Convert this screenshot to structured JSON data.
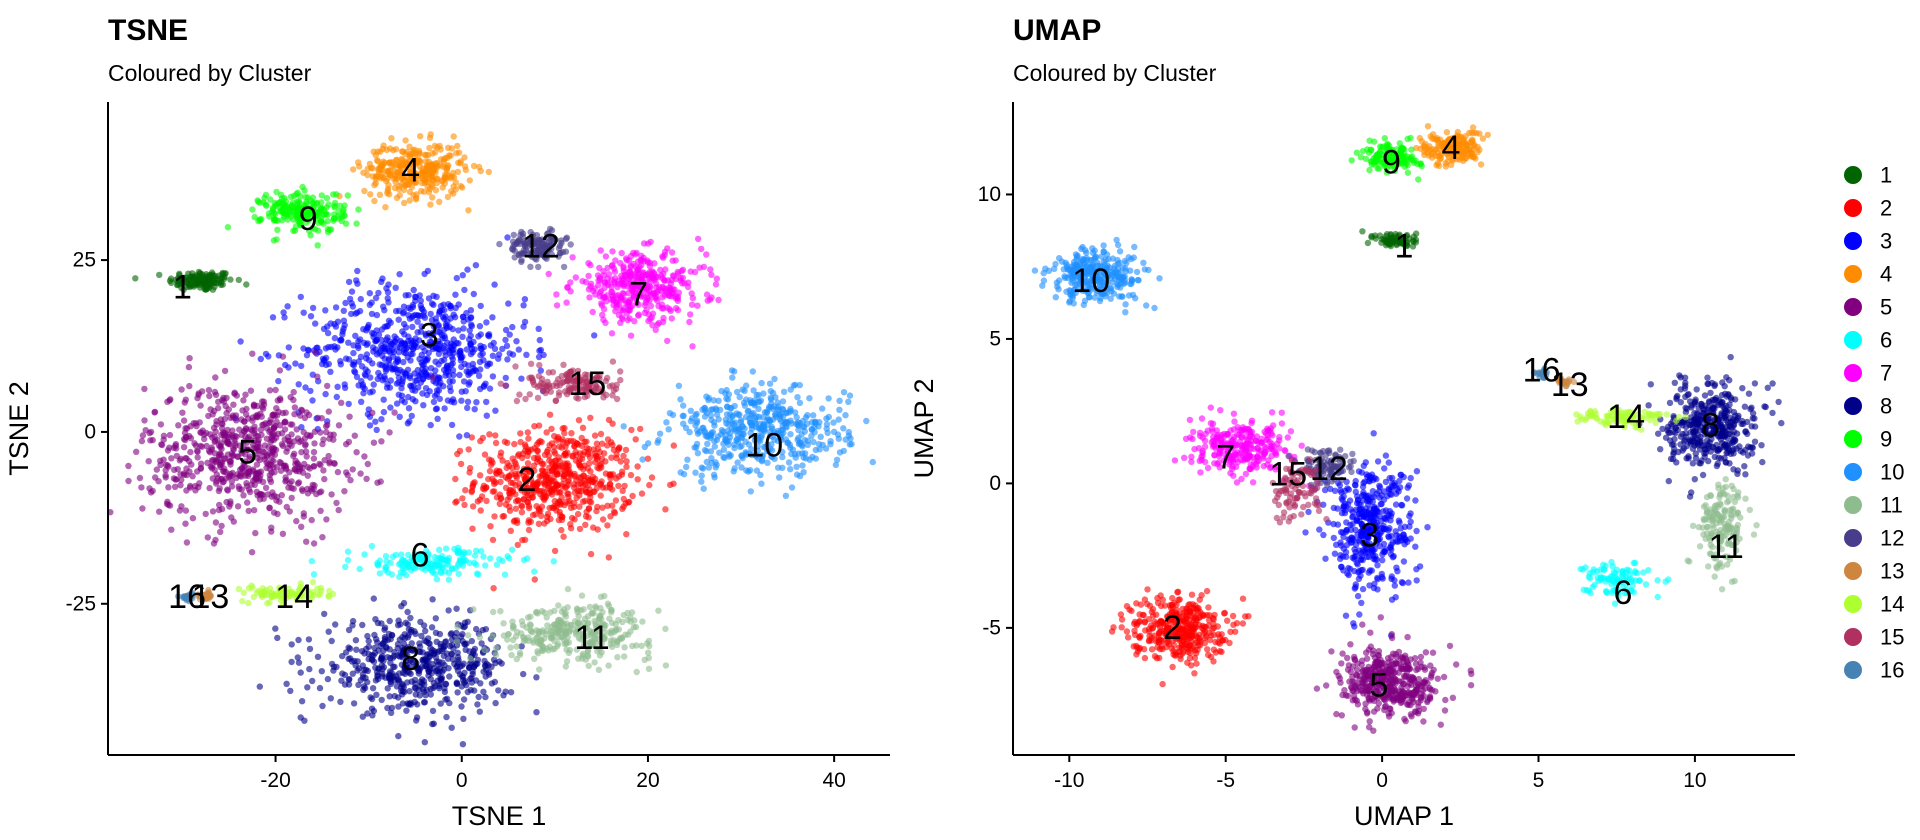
{
  "figure": {
    "legend": {
      "placement": "right",
      "entries": [
        {
          "name": "1",
          "color": "#006400"
        },
        {
          "name": "2",
          "color": "#FF0000"
        },
        {
          "name": "3",
          "color": "#0000FF"
        },
        {
          "name": "4",
          "color": "#FF8C00"
        },
        {
          "name": "5",
          "color": "#800080"
        },
        {
          "name": "6",
          "color": "#00FFFF"
        },
        {
          "name": "7",
          "color": "#FF00FF"
        },
        {
          "name": "8",
          "color": "#00008B"
        },
        {
          "name": "9",
          "color": "#00FF00"
        },
        {
          "name": "10",
          "color": "#1E90FF"
        },
        {
          "name": "11",
          "color": "#8FBC8F"
        },
        {
          "name": "12",
          "color": "#483D8B"
        },
        {
          "name": "13",
          "color": "#CD853F"
        },
        {
          "name": "14",
          "color": "#ADFF2F"
        },
        {
          "name": "15",
          "color": "#B03060"
        },
        {
          "name": "16",
          "color": "#4682B4"
        }
      ]
    }
  },
  "chart_data": [
    {
      "type": "scatter",
      "title": "TSNE",
      "subtitle": "Coloured by Cluster",
      "xlabel": "TSNE 1",
      "ylabel": "TSNE 2",
      "xlim": [
        -38,
        46
      ],
      "ylim": [
        -47,
        48
      ],
      "xticks": [
        -20,
        0,
        20,
        40
      ],
      "yticks": [
        -25,
        0,
        25
      ],
      "grid": false,
      "clusters": [
        {
          "id": "1",
          "label": "1",
          "label_at": [
            -30,
            21
          ],
          "center": [
            -28,
            22
          ],
          "spread": [
            3.5,
            1.5
          ],
          "density": 0.5
        },
        {
          "id": "2",
          "label": "2",
          "label_at": [
            7,
            -7
          ],
          "center": [
            10,
            -7
          ],
          "spread": [
            8.5,
            7.5
          ],
          "density": 2.2
        },
        {
          "id": "3",
          "label": "3",
          "label_at": [
            -3.5,
            14
          ],
          "center": [
            -5,
            12
          ],
          "spread": [
            12,
            9.5
          ],
          "density": 2.5
        },
        {
          "id": "4",
          "label": "4",
          "label_at": [
            -5.5,
            38
          ],
          "center": [
            -5,
            38
          ],
          "spread": [
            5.5,
            4
          ],
          "density": 1.2
        },
        {
          "id": "5",
          "label": "5",
          "label_at": [
            -23,
            -3
          ],
          "center": [
            -23,
            -3
          ],
          "spread": [
            11,
            10
          ],
          "density": 2.6
        },
        {
          "id": "6",
          "label": "6",
          "label_at": [
            -4.5,
            -18
          ],
          "center": [
            -3,
            -19
          ],
          "spread": [
            8.5,
            2
          ],
          "density": 0.6
        },
        {
          "id": "7",
          "label": "7",
          "label_at": [
            19,
            20
          ],
          "center": [
            19,
            21
          ],
          "spread": [
            7,
            5
          ],
          "density": 1.4
        },
        {
          "id": "8",
          "label": "8",
          "label_at": [
            -5.5,
            -33
          ],
          "center": [
            -5,
            -34
          ],
          "spread": [
            10,
            6.5
          ],
          "density": 2.0
        },
        {
          "id": "9",
          "label": "9",
          "label_at": [
            -16.5,
            31
          ],
          "center": [
            -17,
            32
          ],
          "spread": [
            4.5,
            3
          ],
          "density": 0.8
        },
        {
          "id": "10",
          "label": "10",
          "label_at": [
            32.5,
            -2
          ],
          "center": [
            32,
            0
          ],
          "spread": [
            9.5,
            6.5
          ],
          "density": 1.8
        },
        {
          "id": "11",
          "label": "11",
          "label_at": [
            14,
            -30
          ],
          "center": [
            12,
            -29
          ],
          "spread": [
            8.5,
            4
          ],
          "density": 1.2
        },
        {
          "id": "12",
          "label": "12",
          "label_at": [
            8.5,
            27
          ],
          "center": [
            8,
            27
          ],
          "spread": [
            3,
            2.2
          ],
          "density": 0.5
        },
        {
          "id": "13",
          "label": "13",
          "label_at": [
            -27,
            -24
          ],
          "center": [
            -27.5,
            -24
          ],
          "spread": [
            0.8,
            0.6
          ],
          "density": 0.1
        },
        {
          "id": "14",
          "label": "14",
          "label_at": [
            -18,
            -24
          ],
          "center": [
            -19,
            -23.5
          ],
          "spread": [
            4.5,
            1.2
          ],
          "density": 0.3
        },
        {
          "id": "15",
          "label": "15",
          "label_at": [
            13.5,
            7
          ],
          "center": [
            12,
            7
          ],
          "spread": [
            5,
            2.5
          ],
          "density": 0.5
        },
        {
          "id": "16",
          "label": "16",
          "label_at": [
            -29.5,
            -24
          ],
          "center": [
            -29.5,
            -24
          ],
          "spread": [
            0.6,
            0.5
          ],
          "density": 0.08
        }
      ]
    },
    {
      "type": "scatter",
      "title": "UMAP",
      "subtitle": "Coloured by Cluster",
      "xlabel": "UMAP 1",
      "ylabel": "UMAP 2",
      "xlim": [
        -11.8,
        13.2
      ],
      "ylim": [
        -9.4,
        13.2
      ],
      "xticks": [
        -10,
        -5,
        0,
        5,
        10
      ],
      "yticks": [
        -5,
        0,
        5,
        10
      ],
      "grid": false,
      "clusters": [
        {
          "id": "1",
          "label": "1",
          "label_at": [
            0.7,
            8.2
          ],
          "center": [
            0.5,
            8.4
          ],
          "spread": [
            0.7,
            0.3
          ],
          "density": 0.25
        },
        {
          "id": "2",
          "label": "2",
          "label_at": [
            -6.7,
            -5
          ],
          "center": [
            -6.5,
            -5
          ],
          "spread": [
            1.5,
            1.1
          ],
          "density": 1.4
        },
        {
          "id": "3",
          "label": "3",
          "label_at": [
            -0.4,
            -1.8
          ],
          "center": [
            -0.4,
            -1.5
          ],
          "spread": [
            1.4,
            2.2
          ],
          "density": 1.6
        },
        {
          "id": "4",
          "label": "4",
          "label_at": [
            2.2,
            11.6
          ],
          "center": [
            2.2,
            11.6
          ],
          "spread": [
            1.0,
            0.6
          ],
          "density": 0.6
        },
        {
          "id": "5",
          "label": "5",
          "label_at": [
            -0.1,
            -7
          ],
          "center": [
            0.3,
            -6.9
          ],
          "spread": [
            1.6,
            1.2
          ],
          "density": 1.6
        },
        {
          "id": "6",
          "label": "6",
          "label_at": [
            7.7,
            -3.8
          ],
          "center": [
            7.5,
            -3.3
          ],
          "spread": [
            1.0,
            0.6
          ],
          "density": 0.35
        },
        {
          "id": "7",
          "label": "7",
          "label_at": [
            -5,
            0.9
          ],
          "center": [
            -4.5,
            1.2
          ],
          "spread": [
            1.6,
            0.9
          ],
          "density": 1.0
        },
        {
          "id": "8",
          "label": "8",
          "label_at": [
            10.5,
            2
          ],
          "center": [
            10.5,
            2
          ],
          "spread": [
            1.4,
            1.5
          ],
          "density": 1.5
        },
        {
          "id": "9",
          "label": "9",
          "label_at": [
            0.3,
            11.1
          ],
          "center": [
            0.3,
            11.3
          ],
          "spread": [
            0.9,
            0.5
          ],
          "density": 0.5
        },
        {
          "id": "10",
          "label": "10",
          "label_at": [
            -9.3,
            7
          ],
          "center": [
            -9.1,
            7.2
          ],
          "spread": [
            1.5,
            0.9
          ],
          "density": 1.1
        },
        {
          "id": "11",
          "label": "11",
          "label_at": [
            11,
            -2.2
          ],
          "center": [
            10.9,
            -1.5
          ],
          "spread": [
            0.7,
            1.5
          ],
          "density": 0.6
        },
        {
          "id": "12",
          "label": "12",
          "label_at": [
            -1.7,
            0.5
          ],
          "center": [
            -1.8,
            0.6
          ],
          "spread": [
            0.9,
            0.6
          ],
          "density": 0.35
        },
        {
          "id": "13",
          "label": "13",
          "label_at": [
            6,
            3.4
          ],
          "center": [
            5.8,
            3.5
          ],
          "spread": [
            0.3,
            0.2
          ],
          "density": 0.05
        },
        {
          "id": "14",
          "label": "14",
          "label_at": [
            7.8,
            2.3
          ],
          "center": [
            7.7,
            2.3
          ],
          "spread": [
            1.5,
            0.3
          ],
          "density": 0.3
        },
        {
          "id": "15",
          "label": "15",
          "label_at": [
            -3,
            0.3
          ],
          "center": [
            -2.8,
            -0.3
          ],
          "spread": [
            0.8,
            1.1
          ],
          "density": 0.3
        },
        {
          "id": "16",
          "label": "16",
          "label_at": [
            5.1,
            3.9
          ],
          "center": [
            5.1,
            3.8
          ],
          "spread": [
            0.25,
            0.15
          ],
          "density": 0.04
        }
      ]
    }
  ]
}
